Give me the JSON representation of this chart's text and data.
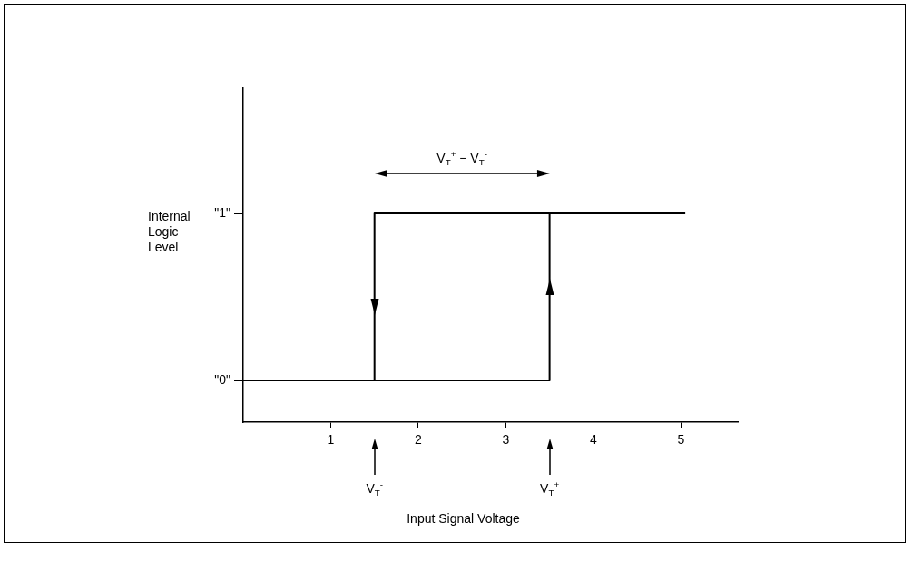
{
  "chart_data": {
    "type": "line",
    "ylabel": "Internal Logic Level",
    "series": [
      {
        "color": "#000000",
        "x": [
          0,
          3.5,
          3.5,
          5.05
        ],
        "values": [
          0,
          0,
          1,
          1
        ]
      },
      {
        "color": "#000000",
        "x": [
          3.5,
          1.5,
          1.5
        ],
        "values": [
          1,
          1,
          0
        ]
      }
    ],
    "xlim": [
      0,
      5.65
    ],
    "xticks": [
      1,
      2,
      3,
      4,
      5
    ],
    "ylim": [
      -0.25,
      1.75
    ],
    "yticks": [
      {
        "value": 0,
        "label": "\"0\""
      },
      {
        "value": 1,
        "label": "\"1\""
      }
    ],
    "grid": false,
    "legend": false,
    "marker": "none",
    "line_style": "solid",
    "annotations": [
      "V$_{T}$$^{+}$ − V$_{T}$$^{-}$",
      "V$_{T}$$^{-}$",
      "V$_{T}$$^{+}$",
      "Input Signal Voltage"
    ]
  }
}
